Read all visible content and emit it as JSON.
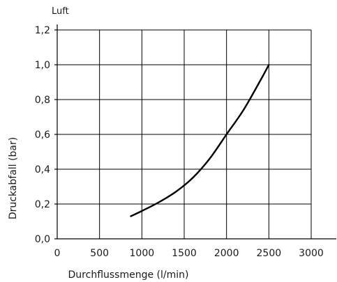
{
  "chart_data": {
    "type": "line",
    "title": "Luft",
    "xlabel": "Durchflussmenge (l/min)",
    "ylabel": "Druckabfall (bar)",
    "xlim": [
      0,
      3000
    ],
    "ylim": [
      0,
      1.2
    ],
    "x_ticks": [
      0,
      500,
      1000,
      1500,
      2000,
      2500,
      3000
    ],
    "x_tick_labels": [
      "0",
      "500",
      "1000",
      "1500",
      "2000",
      "2500",
      "3000"
    ],
    "y_ticks": [
      0,
      0.2,
      0.4,
      0.6,
      0.8,
      1.0,
      1.2
    ],
    "y_tick_labels": [
      "0,0",
      "0,2",
      "0,4",
      "0,6",
      "0,8",
      "1,0",
      "1,2"
    ],
    "grid": true,
    "series": [
      {
        "x": [
          870,
          1000,
          1200,
          1400,
          1600,
          1800,
          2000,
          2200,
          2400,
          2500
        ],
        "y": [
          0.13,
          0.16,
          0.21,
          0.27,
          0.35,
          0.46,
          0.6,
          0.74,
          0.91,
          1.0
        ]
      }
    ]
  }
}
